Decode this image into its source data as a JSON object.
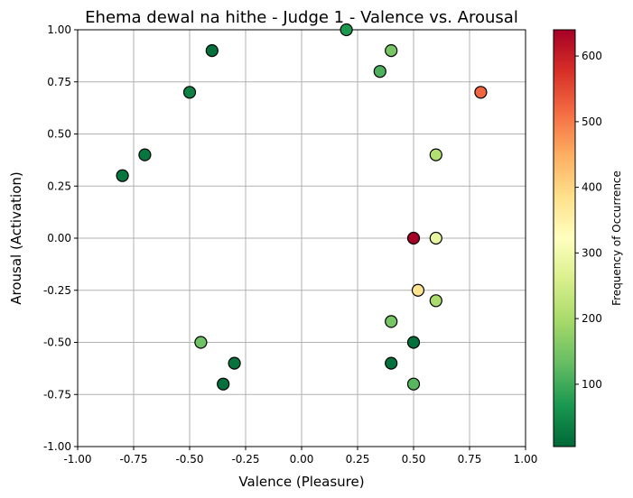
{
  "chart_data": {
    "type": "scatter",
    "title": "Ehema dewal na hithe - Judge 1 - Valence vs. Arousal",
    "xlabel": "Valence (Pleasure)",
    "ylabel": "Arousal (Activation)",
    "xlim": [
      -1.0,
      1.0
    ],
    "ylim": [
      -1.0,
      1.0
    ],
    "xticks": [
      "-1.00",
      "-0.75",
      "-0.50",
      "-0.25",
      "0.00",
      "0.25",
      "0.50",
      "0.75",
      "1.00"
    ],
    "yticks": [
      "-1.00",
      "-0.75",
      "-0.50",
      "-0.25",
      "0.00",
      "0.25",
      "0.50",
      "0.75",
      "1.00"
    ],
    "grid": true,
    "colorbar": {
      "label": "Frequency of Occurrence",
      "colormap": "RdYlGn_r",
      "range": [
        5,
        640
      ],
      "ticks": [
        "100",
        "200",
        "300",
        "400",
        "500",
        "600"
      ]
    },
    "points": [
      {
        "x": 0.2,
        "y": 1.0,
        "freq": 70
      },
      {
        "x": 0.4,
        "y": 0.9,
        "freq": 150
      },
      {
        "x": 0.35,
        "y": 0.8,
        "freq": 110
      },
      {
        "x": -0.4,
        "y": 0.9,
        "freq": 15
      },
      {
        "x": -0.5,
        "y": 0.7,
        "freq": 40
      },
      {
        "x": 0.8,
        "y": 0.7,
        "freq": 520
      },
      {
        "x": -0.7,
        "y": 0.4,
        "freq": 25
      },
      {
        "x": -0.8,
        "y": 0.3,
        "freq": 25
      },
      {
        "x": 0.6,
        "y": 0.4,
        "freq": 210
      },
      {
        "x": 0.5,
        "y": 0.0,
        "freq": 640
      },
      {
        "x": 0.6,
        "y": 0.0,
        "freq": 285
      },
      {
        "x": 0.52,
        "y": -0.25,
        "freq": 380
      },
      {
        "x": 0.6,
        "y": -0.3,
        "freq": 200
      },
      {
        "x": 0.4,
        "y": -0.4,
        "freq": 150
      },
      {
        "x": -0.45,
        "y": -0.5,
        "freq": 140
      },
      {
        "x": 0.5,
        "y": -0.5,
        "freq": 15
      },
      {
        "x": -0.3,
        "y": -0.6,
        "freq": 20
      },
      {
        "x": 0.4,
        "y": -0.6,
        "freq": 15
      },
      {
        "x": -0.35,
        "y": -0.7,
        "freq": 15
      },
      {
        "x": 0.5,
        "y": -0.7,
        "freq": 120
      }
    ]
  }
}
